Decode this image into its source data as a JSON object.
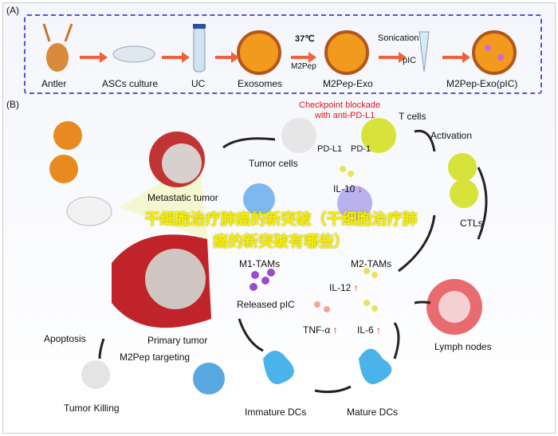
{
  "panel_a": {
    "label": "(A)",
    "steps": [
      "Antler",
      "ASCs culture",
      "UC",
      "Exosomes",
      "M2Pep-Exo",
      "M2Pep-Exo(pIC)"
    ],
    "temperature": "37℃",
    "peptide": "M2Pep",
    "sonication": "Sonication",
    "cargo": "pIC"
  },
  "panel_b": {
    "label": "(B)",
    "checkpoint": "Checkpoint blockade",
    "checkpoint_sub": "with anti-PD-L1",
    "t_cells": "T cells",
    "pd_l1": "PD-L1",
    "pd_1": "PD-1",
    "activation": "Activation",
    "tumor_cells": "Tumor cells",
    "metastatic": "Metastatic tumor",
    "il10": "IL-10",
    "m1": "M1-TAMs",
    "m2": "M2-TAMs",
    "ctls": "CTLs",
    "released": "Released pIC",
    "il12": "IL-12",
    "tnf": "TNF-α",
    "il6": "IL-6",
    "primary": "Primary tumor",
    "apoptosis": "Apoptosis",
    "targeting": "M2Pep targeting",
    "killing": "Tumor Killing",
    "immature": "Immature DCs",
    "mature": "Mature DCs",
    "lymph": "Lymph nodes",
    "up": "↑",
    "down": "↓"
  },
  "overlay_title": "干细胞治疗肺癌的新突破（干细胞治疗肺癌的新突破有哪些）",
  "colors": {
    "frame": "#5a4fe0",
    "arrow": "#f0603a",
    "red": "#e0141e",
    "overlay": "#f5f000"
  }
}
